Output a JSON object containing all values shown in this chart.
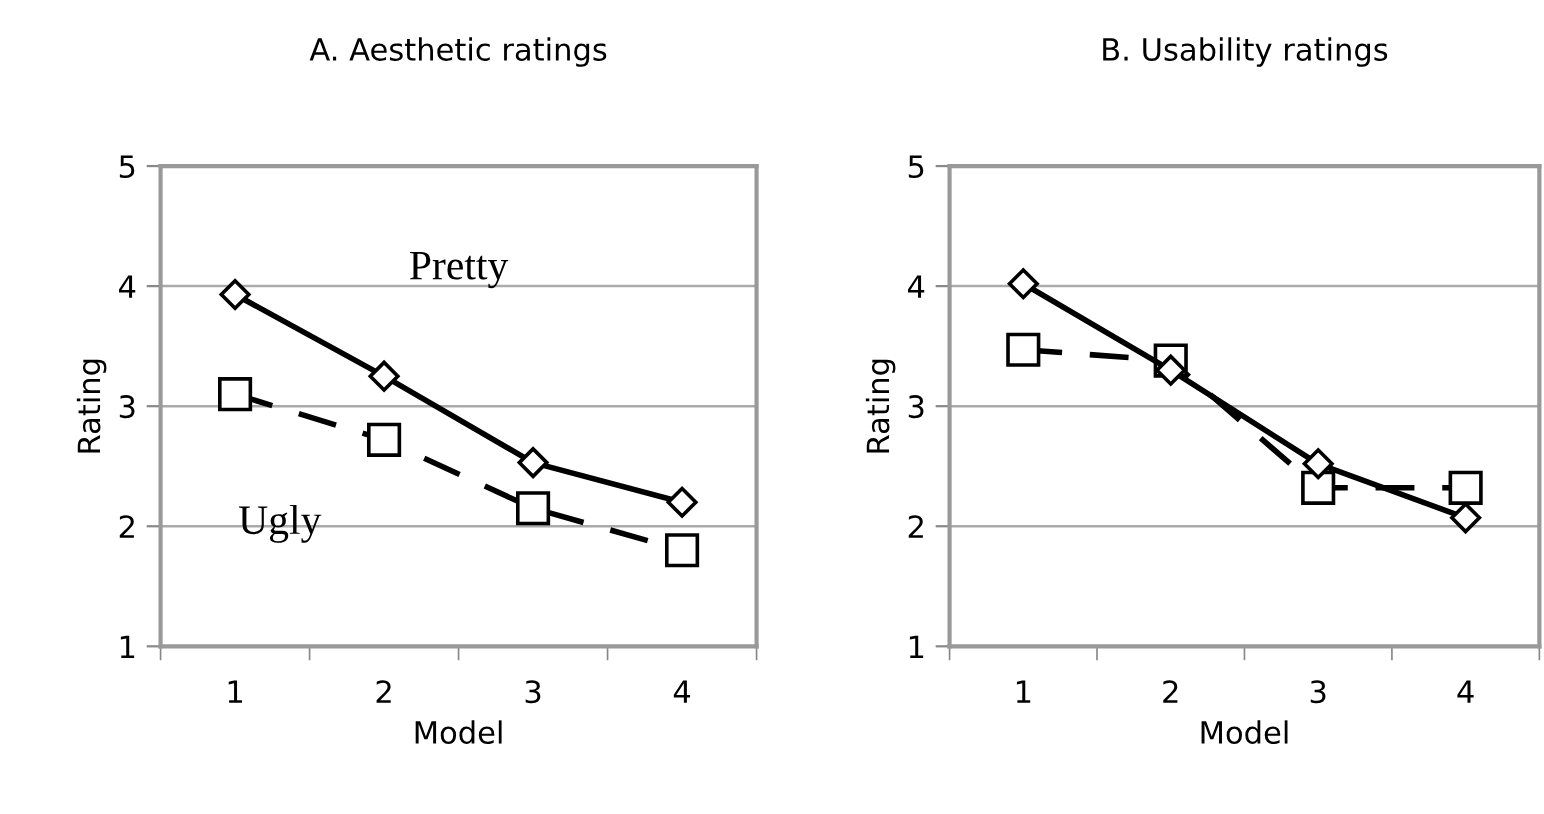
{
  "chart_data": [
    {
      "type": "line",
      "title": "A. Aesthetic ratings",
      "xlabel": "Model",
      "ylabel": "Rating",
      "categories": [
        "1",
        "2",
        "3",
        "4"
      ],
      "ylim": [
        1,
        5
      ],
      "yticks": [
        1,
        2,
        3,
        4,
        5
      ],
      "grid": "y",
      "legend": false,
      "series": [
        {
          "name": "Pretty",
          "color": "#000000",
          "values": [
            3.93,
            3.25,
            2.53,
            2.2
          ],
          "marker": "diamond",
          "line_style": "solid"
        },
        {
          "name": "Ugly",
          "color": "#000000",
          "values": [
            3.1,
            2.72,
            2.15,
            1.8
          ],
          "marker": "square",
          "line_style": "dashed"
        }
      ]
    },
    {
      "type": "line",
      "title": "B. Usability ratings",
      "xlabel": "Model",
      "ylabel": "Rating",
      "categories": [
        "1",
        "2",
        "3",
        "4"
      ],
      "ylim": [
        1,
        5
      ],
      "yticks": [
        1,
        2,
        3,
        4,
        5
      ],
      "grid": "y",
      "legend": false,
      "series": [
        {
          "color": "#000000",
          "values": [
            4.02,
            3.3,
            2.52,
            2.07
          ],
          "marker": "diamond",
          "line_style": "solid"
        },
        {
          "color": "#000000",
          "values": [
            3.47,
            3.38,
            2.32,
            2.32
          ],
          "marker": "square",
          "line_style": "dashed"
        }
      ]
    }
  ]
}
